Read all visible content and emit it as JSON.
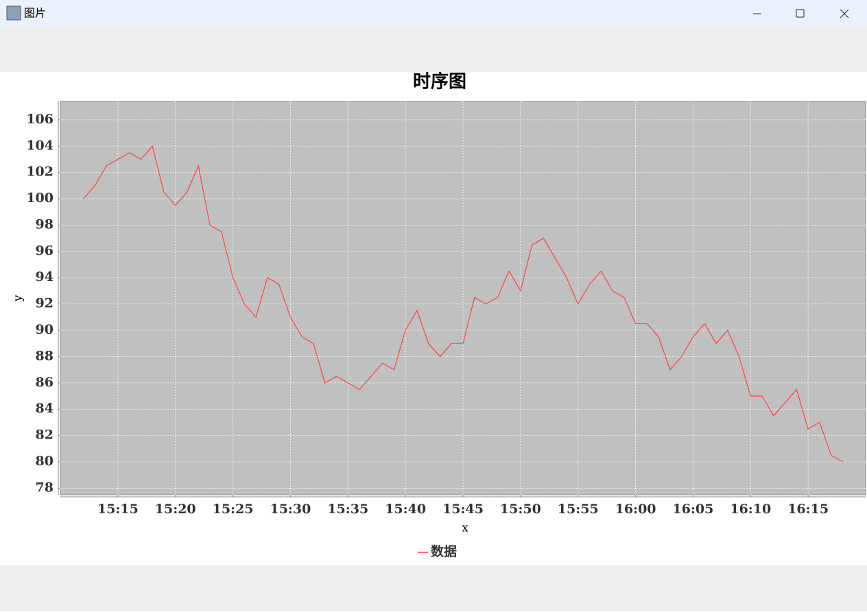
{
  "window": {
    "title": "图片"
  },
  "chart_data": {
    "type": "line",
    "title": "时序图",
    "x_label": "x",
    "y_label": "y",
    "x": [
      "15:12",
      "15:13",
      "15:14",
      "15:15",
      "15:16",
      "15:17",
      "15:18",
      "15:19",
      "15:20",
      "15:21",
      "15:22",
      "15:23",
      "15:24",
      "15:25",
      "15:26",
      "15:27",
      "15:28",
      "15:29",
      "15:30",
      "15:31",
      "15:32",
      "15:33",
      "15:34",
      "15:35",
      "15:36",
      "15:37",
      "15:38",
      "15:39",
      "15:40",
      "15:41",
      "15:42",
      "15:43",
      "15:44",
      "15:45",
      "15:46",
      "15:47",
      "15:48",
      "15:49",
      "15:50",
      "15:51",
      "15:52",
      "15:53",
      "15:54",
      "15:55",
      "15:56",
      "15:57",
      "15:58",
      "15:59",
      "16:00",
      "16:01",
      "16:02",
      "16:03",
      "16:04",
      "16:05",
      "16:06",
      "16:07",
      "16:08",
      "16:09",
      "16:10",
      "16:11",
      "16:12",
      "16:13",
      "16:14",
      "16:15",
      "16:16",
      "16:17",
      "16:18"
    ],
    "series": [
      {
        "name": "数据",
        "color": "#ff4040",
        "values": [
          100,
          101,
          102.5,
          103,
          103.5,
          103,
          104,
          100.5,
          99.5,
          100.5,
          102.5,
          98,
          97.5,
          94,
          92,
          91,
          94,
          93.5,
          91,
          89.5,
          89,
          86,
          86.5,
          86,
          85.5,
          86.5,
          87.5,
          87,
          90,
          91.5,
          89,
          88,
          89,
          89,
          92.5,
          92,
          92.5,
          94.5,
          93,
          96.5,
          97,
          95.5,
          94,
          92,
          93.5,
          94.5,
          93,
          92.5,
          90.5,
          90.5,
          89.5,
          87,
          88,
          89.5,
          90.5,
          89,
          90,
          88,
          85,
          85,
          83.5,
          84.5,
          85.5,
          82.5,
          83,
          80.5,
          80
        ]
      }
    ],
    "xlim": [
      "15:10",
      "16:20"
    ],
    "xticks": [
      "15:15",
      "15:20",
      "15:25",
      "15:30",
      "15:35",
      "15:40",
      "15:45",
      "15:50",
      "15:55",
      "16:00",
      "16:05",
      "16:10",
      "16:15"
    ],
    "ylim": [
      77.5,
      107.4
    ],
    "yticks": [
      78,
      80,
      82,
      84,
      86,
      88,
      90,
      92,
      94,
      96,
      98,
      100,
      102,
      104,
      106
    ],
    "grid": true,
    "background": "#c0c0c0",
    "legend": "bottom"
  }
}
